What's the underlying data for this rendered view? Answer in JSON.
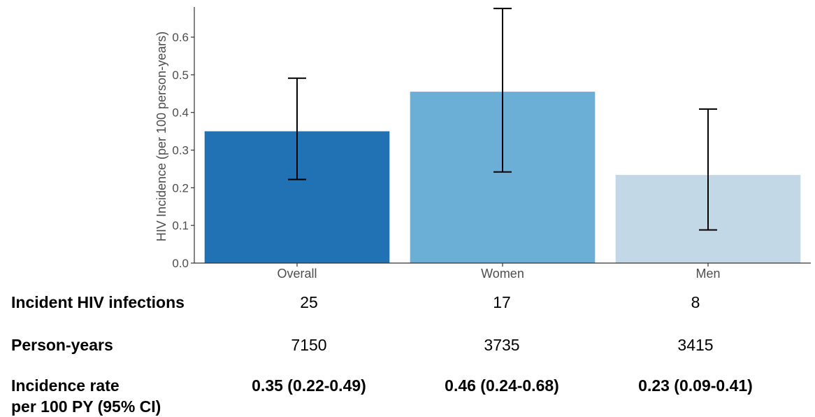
{
  "chart_data": {
    "type": "bar",
    "categories": [
      "Overall",
      "Women",
      "Men"
    ],
    "values": [
      0.35,
      0.455,
      0.234
    ],
    "ci_lower": [
      0.222,
      0.242,
      0.088
    ],
    "ci_upper": [
      0.491,
      0.676,
      0.409
    ],
    "colors": [
      "#2171b5",
      "#6baed6",
      "#c2d8e6"
    ],
    "title": "",
    "xlabel": "",
    "ylabel": "HIV Incidence (per 100 person-years)",
    "ylim": [
      0,
      0.68
    ],
    "yticks": [
      "0.0",
      "0.1",
      "0.2",
      "0.3",
      "0.4",
      "0.5",
      "0.6"
    ],
    "grid": false
  },
  "table": {
    "rows": [
      {
        "label": "Incident HIV infections",
        "values": [
          "25",
          "17",
          "8"
        ]
      },
      {
        "label": "Person-years",
        "values": [
          "7150",
          "3735",
          "3415"
        ]
      },
      {
        "label_line1": "Incidence rate",
        "label_line2": "per 100 PY (95% CI)",
        "values": [
          "0.35 (0.22-0.49)",
          "0.46 (0.24-0.68)",
          "0.23 (0.09-0.41)"
        ]
      }
    ]
  }
}
